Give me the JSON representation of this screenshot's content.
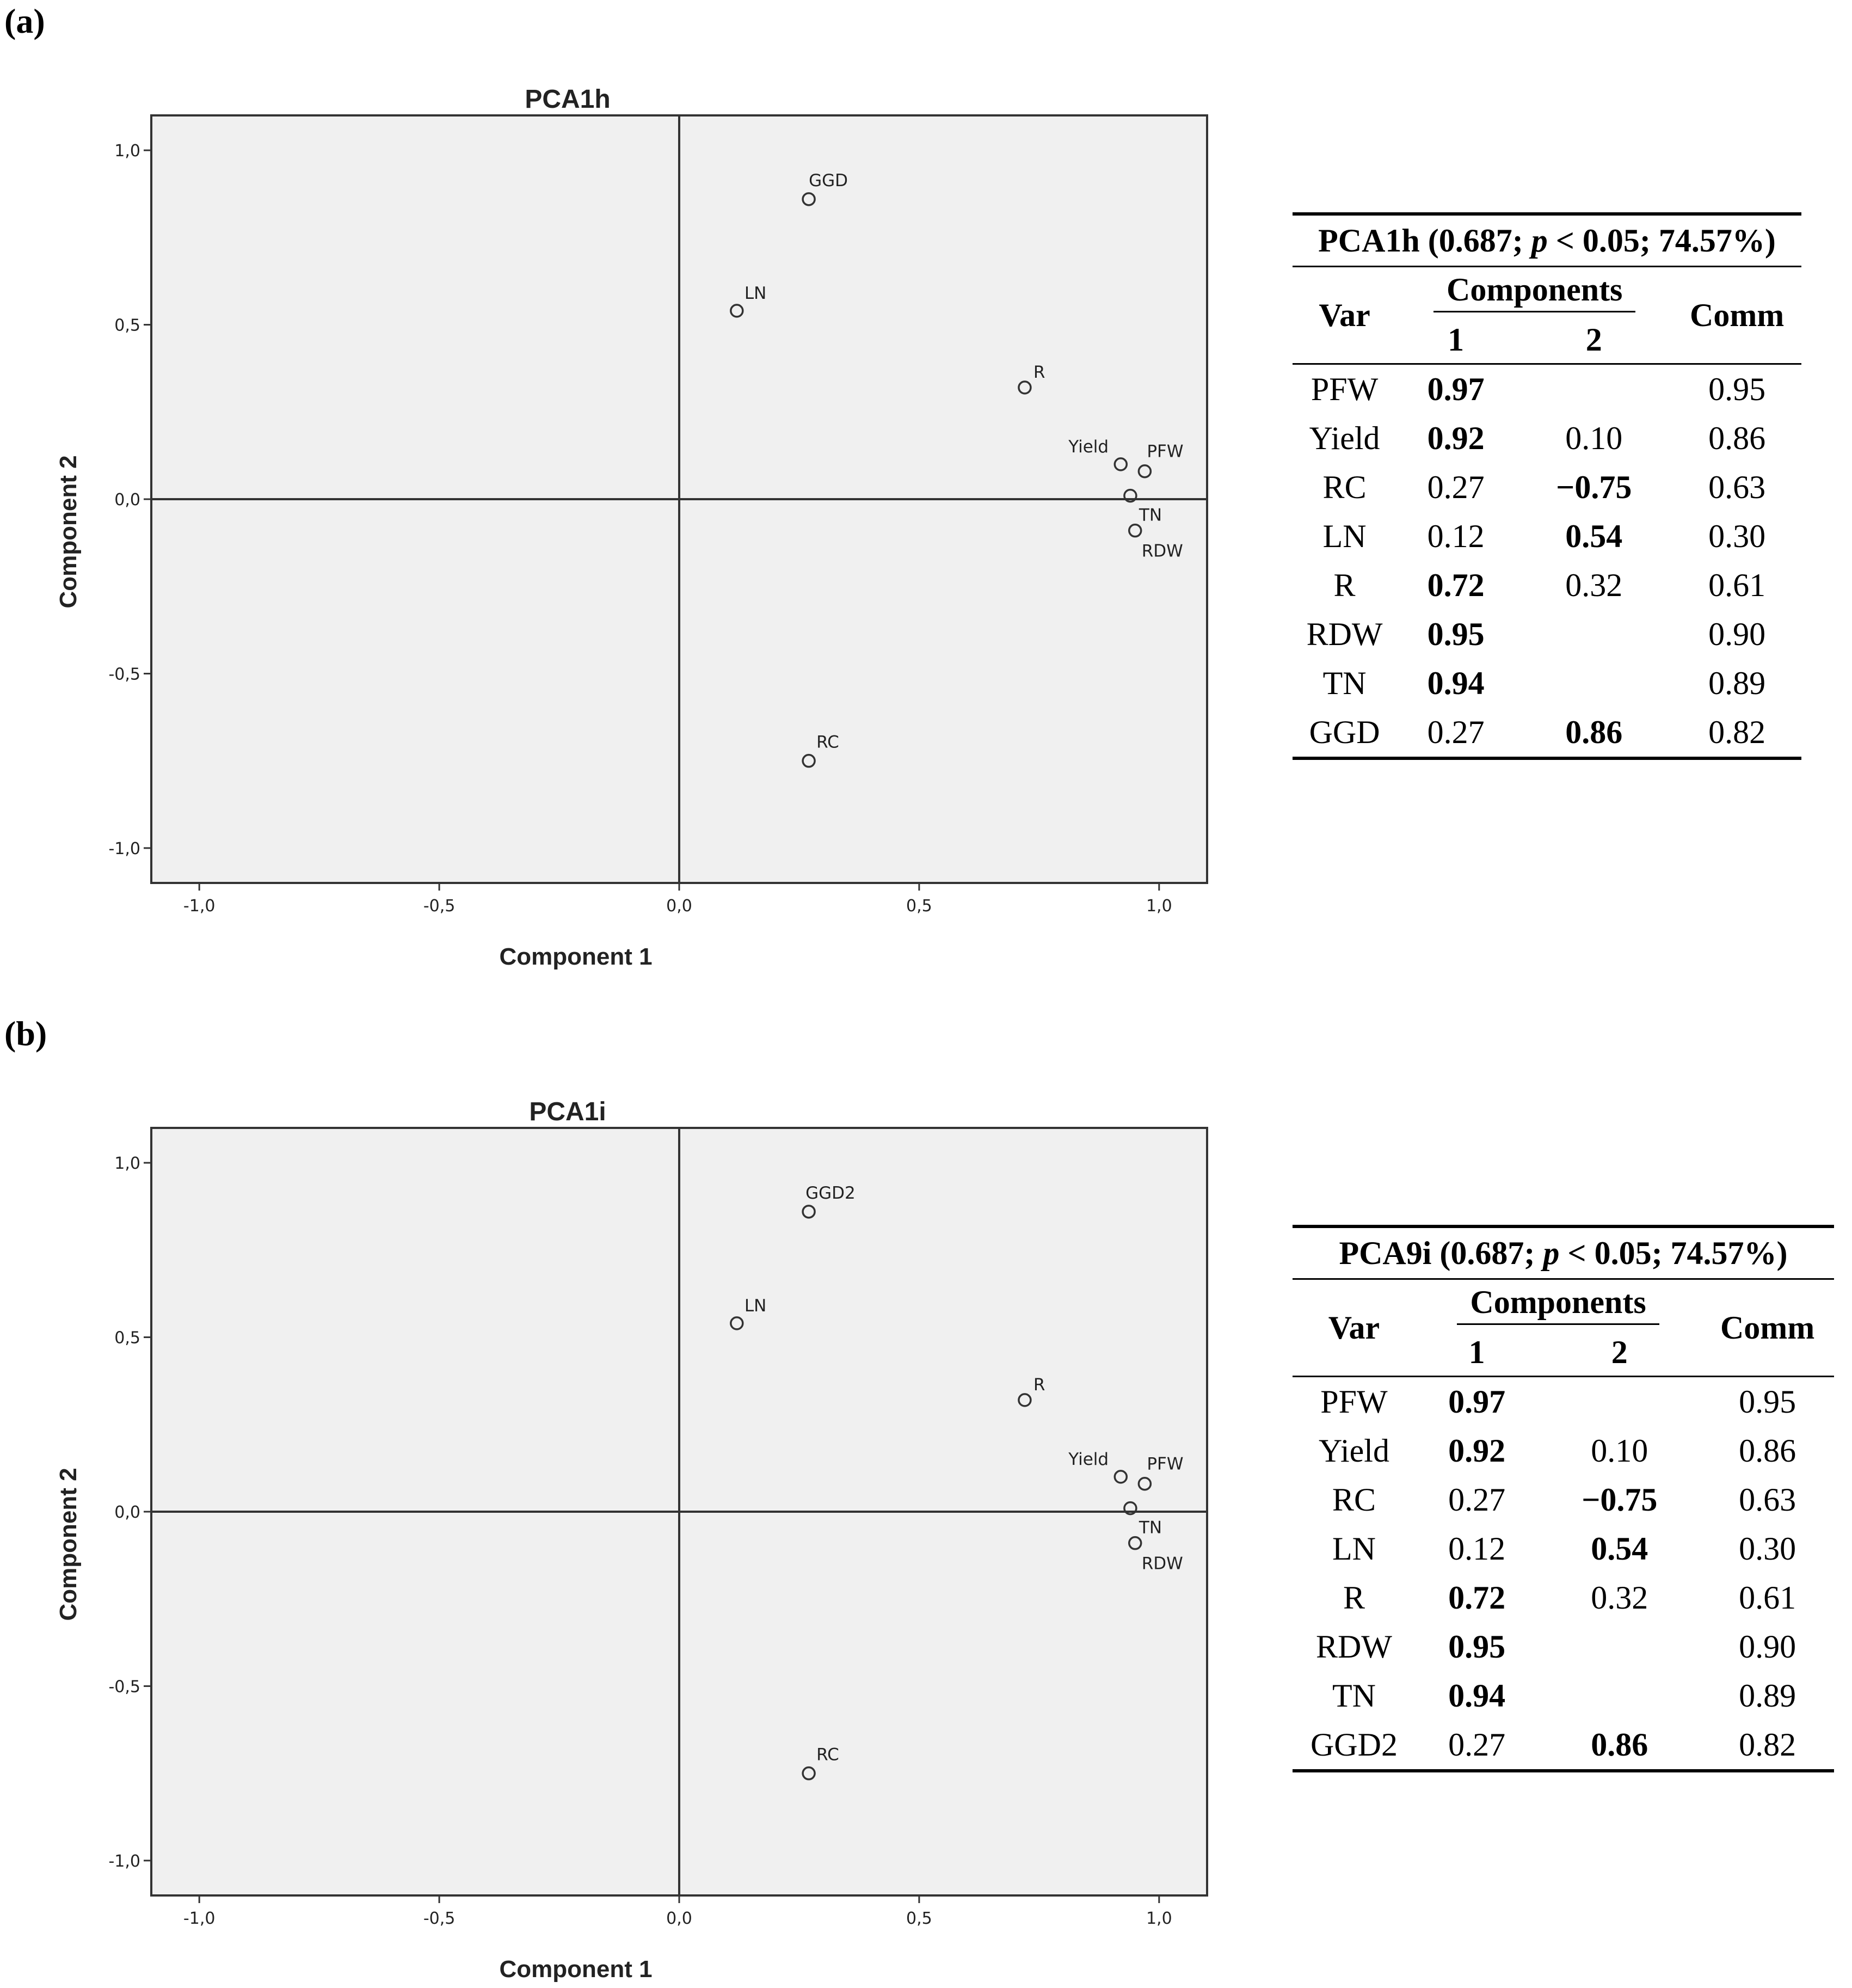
{
  "chart_data": [
    {
      "panel_label": "(a)",
      "type": "scatter",
      "title": "PCA1h",
      "xlabel": "Component 1",
      "ylabel": "Component 2",
      "xlim": [
        -1.1,
        1.1
      ],
      "ylim": [
        -1.1,
        1.1
      ],
      "xticks": [
        -1.0,
        -0.5,
        0.0,
        0.5,
        1.0
      ],
      "yticks": [
        -1.0,
        -0.5,
        0.0,
        0.5,
        1.0
      ],
      "xtick_labels": [
        "-1,0",
        "-0,5",
        "0,0",
        "0,5",
        "1,0"
      ],
      "ytick_labels": [
        "-1,0",
        "-0,5",
        "0,0",
        "0,5",
        "1,0"
      ],
      "points": [
        {
          "label": "GGD",
          "x": 0.27,
          "y": 0.86
        },
        {
          "label": "LN",
          "x": 0.12,
          "y": 0.54
        },
        {
          "label": "R",
          "x": 0.72,
          "y": 0.32
        },
        {
          "label": "Yield",
          "x": 0.92,
          "y": 0.1
        },
        {
          "label": "PFW",
          "x": 0.97,
          "y": 0.08
        },
        {
          "label": "TN",
          "x": 0.94,
          "y": 0.01
        },
        {
          "label": "RDW",
          "x": 0.95,
          "y": -0.09
        },
        {
          "label": "RC",
          "x": 0.27,
          "y": -0.75
        }
      ],
      "grid": false
    },
    {
      "panel_label": "(b)",
      "type": "scatter",
      "title": "PCA1i",
      "xlabel": "Component 1",
      "ylabel": "Component 2",
      "xlim": [
        -1.1,
        1.1
      ],
      "ylim": [
        -1.1,
        1.1
      ],
      "xticks": [
        -1.0,
        -0.5,
        0.0,
        0.5,
        1.0
      ],
      "yticks": [
        -1.0,
        -0.5,
        0.0,
        0.5,
        1.0
      ],
      "xtick_labels": [
        "-1,0",
        "-0,5",
        "0,0",
        "0,5",
        "1,0"
      ],
      "ytick_labels": [
        "-1,0",
        "-0,5",
        "0,0",
        "0,5",
        "1,0"
      ],
      "points": [
        {
          "label": "GGD2",
          "x": 0.27,
          "y": 0.86
        },
        {
          "label": "LN",
          "x": 0.12,
          "y": 0.54
        },
        {
          "label": "R",
          "x": 0.72,
          "y": 0.32
        },
        {
          "label": "Yield",
          "x": 0.92,
          "y": 0.1
        },
        {
          "label": "PFW",
          "x": 0.97,
          "y": 0.08
        },
        {
          "label": "TN",
          "x": 0.94,
          "y": 0.01
        },
        {
          "label": "RDW",
          "x": 0.95,
          "y": -0.09
        },
        {
          "label": "RC",
          "x": 0.27,
          "y": -0.75
        }
      ],
      "grid": false
    }
  ],
  "tables": [
    {
      "caption_pre": "PCA1h (0.687; ",
      "caption_p": "p",
      "caption_post": " < 0.05; 74.57%)",
      "header": {
        "var": "Var",
        "components": "Components",
        "c1": "1",
        "c2": "2",
        "comm": "Comm"
      },
      "rows": [
        {
          "var": "PFW",
          "c1": "0.97",
          "c1_bold": true,
          "c2": "",
          "c2_bold": false,
          "comm": "0.95"
        },
        {
          "var": "Yield",
          "c1": "0.92",
          "c1_bold": true,
          "c2": "0.10",
          "c2_bold": false,
          "comm": "0.86"
        },
        {
          "var": "RC",
          "c1": "0.27",
          "c1_bold": false,
          "c2": "−0.75",
          "c2_bold": true,
          "comm": "0.63"
        },
        {
          "var": "LN",
          "c1": "0.12",
          "c1_bold": false,
          "c2": "0.54",
          "c2_bold": true,
          "comm": "0.30"
        },
        {
          "var": "R",
          "c1": "0.72",
          "c1_bold": true,
          "c2": "0.32",
          "c2_bold": false,
          "comm": "0.61"
        },
        {
          "var": "RDW",
          "c1": "0.95",
          "c1_bold": true,
          "c2": "",
          "c2_bold": false,
          "comm": "0.90"
        },
        {
          "var": "TN",
          "c1": "0.94",
          "c1_bold": true,
          "c2": "",
          "c2_bold": false,
          "comm": "0.89"
        },
        {
          "var": "GGD",
          "c1": "0.27",
          "c1_bold": false,
          "c2": "0.86",
          "c2_bold": true,
          "comm": "0.82"
        }
      ]
    },
    {
      "caption_pre": "PCA9i (0.687; ",
      "caption_p": "p",
      "caption_post": " < 0.05; 74.57%)",
      "header": {
        "var": "Var",
        "components": "Components",
        "c1": "1",
        "c2": "2",
        "comm": "Comm"
      },
      "rows": [
        {
          "var": "PFW",
          "c1": "0.97",
          "c1_bold": true,
          "c2": "",
          "c2_bold": false,
          "comm": "0.95"
        },
        {
          "var": "Yield",
          "c1": "0.92",
          "c1_bold": true,
          "c2": "0.10",
          "c2_bold": false,
          "comm": "0.86"
        },
        {
          "var": "RC",
          "c1": "0.27",
          "c1_bold": false,
          "c2": "−0.75",
          "c2_bold": true,
          "comm": "0.63"
        },
        {
          "var": "LN",
          "c1": "0.12",
          "c1_bold": false,
          "c2": "0.54",
          "c2_bold": true,
          "comm": "0.30"
        },
        {
          "var": "R",
          "c1": "0.72",
          "c1_bold": true,
          "c2": "0.32",
          "c2_bold": false,
          "comm": "0.61"
        },
        {
          "var": "RDW",
          "c1": "0.95",
          "c1_bold": true,
          "c2": "",
          "c2_bold": false,
          "comm": "0.90"
        },
        {
          "var": "TN",
          "c1": "0.94",
          "c1_bold": true,
          "c2": "",
          "c2_bold": false,
          "comm": "0.89"
        },
        {
          "var": "GGD2",
          "c1": "0.27",
          "c1_bold": false,
          "c2": "0.86",
          "c2_bold": true,
          "comm": "0.82"
        }
      ]
    }
  ]
}
